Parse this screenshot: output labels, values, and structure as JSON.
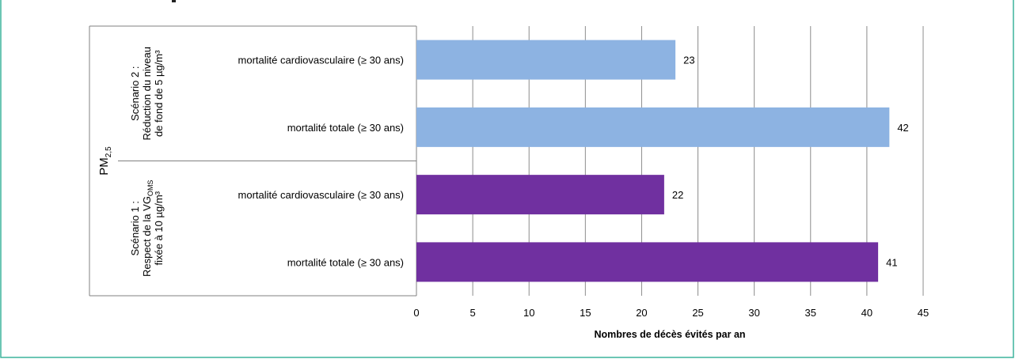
{
  "chart_data": {
    "type": "bar",
    "orientation": "horizontal",
    "pollutant": {
      "main": "PM",
      "sub": "2,5"
    },
    "groups": [
      {
        "name_lines": [
          "Scénario 2 :",
          "Réduction du niveau",
          "de fond de 5 µg/m³"
        ],
        "color": "#8DB3E2",
        "bars": [
          {
            "label": "mortalité cardiovasculaire (≥ 30 ans)",
            "value": 23
          },
          {
            "label": "mortalité totale (≥ 30 ans)",
            "value": 42
          }
        ]
      },
      {
        "name_lines": [
          {
            "text": "Scénario 1 :"
          },
          {
            "text": "Respect de la VG",
            "sub": "OMS"
          },
          {
            "text": "fixée à 10 µg/m³"
          }
        ],
        "color": "#7030A0",
        "bars": [
          {
            "label": "mortalité cardiovasculaire (≥ 30 ans)",
            "value": 22
          },
          {
            "label": "mortalité totale (≥ 30 ans)",
            "value": 41
          }
        ]
      }
    ],
    "xlabel": "Nombres de décès évités par an",
    "xlim": [
      0,
      45
    ],
    "xticks": [
      0,
      5,
      10,
      15,
      20,
      25,
      30,
      35,
      40,
      45
    ],
    "grid": true,
    "legend": "none"
  },
  "colors": {
    "frame_border": "#3BB39C",
    "grid": "#8C8C8C"
  }
}
